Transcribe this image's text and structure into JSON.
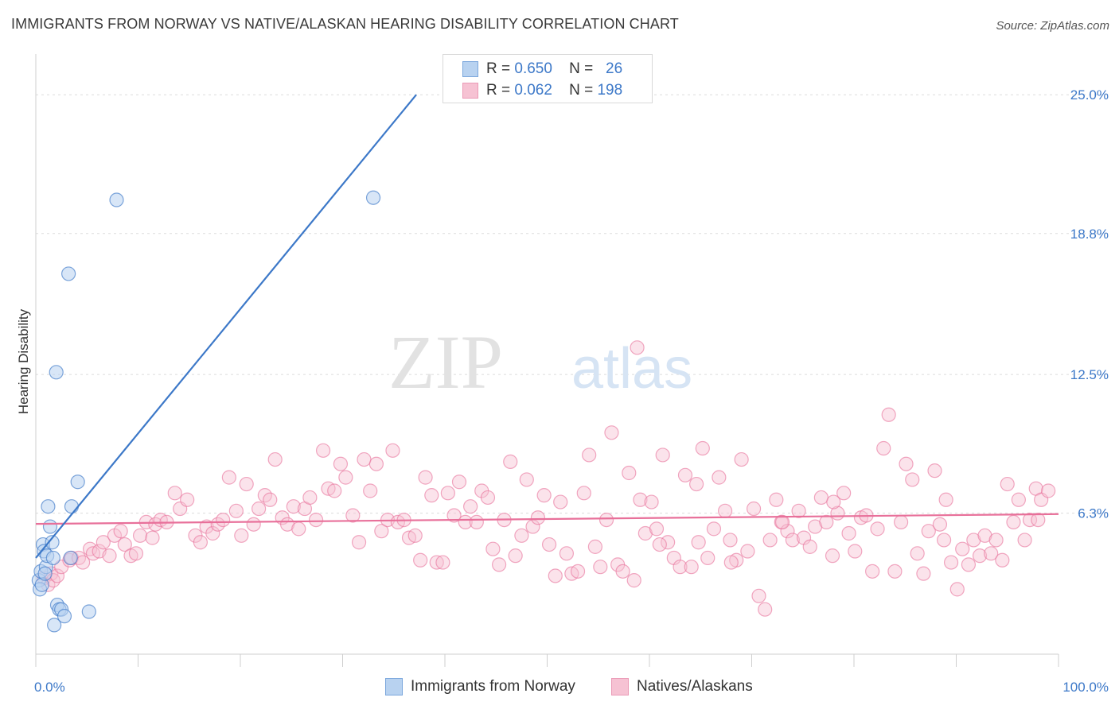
{
  "title": "IMMIGRANTS FROM NORWAY VS NATIVE/ALASKAN HEARING DISABILITY CORRELATION CHART",
  "source": "Source: ZipAtlas.com",
  "watermark": {
    "zip": "ZIP",
    "atlas": "atlas"
  },
  "colors": {
    "blue": "#3c78c8",
    "blue_fill": "#b8d2f0",
    "pink": "#e8709a",
    "pink_fill": "#f6c2d3",
    "grid": "#dcdcdc"
  },
  "legend": {
    "rows": [
      {
        "r_label": "R =",
        "r_value": "0.650",
        "n_label": "N =",
        "n_value": "26"
      },
      {
        "r_label": "R =",
        "r_value": "0.062",
        "n_label": "N =",
        "n_value": "198"
      }
    ]
  },
  "bottom_legend": {
    "series1": "Immigrants from Norway",
    "series2": "Natives/Alaskans"
  },
  "chart_data": {
    "type": "scatter",
    "title": "IMMIGRANTS FROM NORWAY VS NATIVE/ALASKAN HEARING DISABILITY CORRELATION CHART",
    "xlabel": "",
    "ylabel": "Hearing Disability",
    "xlim": [
      0,
      100
    ],
    "ylim": [
      0,
      26.5
    ],
    "x_tick_labels": [
      "0.0%",
      "100.0%"
    ],
    "y_ticks": [
      6.3,
      12.5,
      18.8,
      25.0
    ],
    "y_tick_labels": [
      "6.3%",
      "12.5%",
      "18.8%",
      "25.0%"
    ],
    "grid": true,
    "series": [
      {
        "name": "Immigrants from Norway",
        "R": 0.65,
        "N": 26,
        "trendline": {
          "x": [
            0,
            37.2
          ],
          "y": [
            4.3,
            25.0
          ]
        },
        "points": [
          [
            0.3,
            3.3
          ],
          [
            0.4,
            2.9
          ],
          [
            0.5,
            3.7
          ],
          [
            0.6,
            3.1
          ],
          [
            0.7,
            4.9
          ],
          [
            0.8,
            4.6
          ],
          [
            1.0,
            3.9
          ],
          [
            1.1,
            4.4
          ],
          [
            1.2,
            6.6
          ],
          [
            1.4,
            5.7
          ],
          [
            1.6,
            5.0
          ],
          [
            1.7,
            4.3
          ],
          [
            1.8,
            1.3
          ],
          [
            2.1,
            2.2
          ],
          [
            2.3,
            2.0
          ],
          [
            2.5,
            2.0
          ],
          [
            2.8,
            1.7
          ],
          [
            3.2,
            17.0
          ],
          [
            3.4,
            4.3
          ],
          [
            3.5,
            6.6
          ],
          [
            4.1,
            7.7
          ],
          [
            5.2,
            1.9
          ],
          [
            7.9,
            20.3
          ],
          [
            2.0,
            12.6
          ],
          [
            33.0,
            20.4
          ],
          [
            0.9,
            3.6
          ]
        ]
      },
      {
        "name": "Natives/Alaskans",
        "R": 0.062,
        "N": 198,
        "trendline": {
          "x": [
            0,
            100
          ],
          "y": [
            5.82,
            6.26
          ]
        },
        "points": [
          [
            0.8,
            3.4
          ],
          [
            1.2,
            3.1
          ],
          [
            1.5,
            3.6
          ],
          [
            1.7,
            3.3
          ],
          [
            2.1,
            3.5
          ],
          [
            2.5,
            3.9
          ],
          [
            3.3,
            4.2
          ],
          [
            3.5,
            4.3
          ],
          [
            4.2,
            4.3
          ],
          [
            4.6,
            4.1
          ],
          [
            5.3,
            4.7
          ],
          [
            5.6,
            4.5
          ],
          [
            6.2,
            4.6
          ],
          [
            6.6,
            5.0
          ],
          [
            7.2,
            4.4
          ],
          [
            7.7,
            5.3
          ],
          [
            8.3,
            5.5
          ],
          [
            8.7,
            4.9
          ],
          [
            9.3,
            4.4
          ],
          [
            9.8,
            4.5
          ],
          [
            10.2,
            5.3
          ],
          [
            10.8,
            5.9
          ],
          [
            11.4,
            5.2
          ],
          [
            11.7,
            5.8
          ],
          [
            12.2,
            6.0
          ],
          [
            12.8,
            5.9
          ],
          [
            13.6,
            7.2
          ],
          [
            14.1,
            6.5
          ],
          [
            14.8,
            6.9
          ],
          [
            15.6,
            5.3
          ],
          [
            16.1,
            5.0
          ],
          [
            16.7,
            5.7
          ],
          [
            17.3,
            5.4
          ],
          [
            17.8,
            5.8
          ],
          [
            18.3,
            6.0
          ],
          [
            18.9,
            7.9
          ],
          [
            19.6,
            6.4
          ],
          [
            20.1,
            5.3
          ],
          [
            20.6,
            7.6
          ],
          [
            21.3,
            5.8
          ],
          [
            21.8,
            6.5
          ],
          [
            22.4,
            7.1
          ],
          [
            22.9,
            6.9
          ],
          [
            23.4,
            8.7
          ],
          [
            24.1,
            6.1
          ],
          [
            24.6,
            5.8
          ],
          [
            25.2,
            6.6
          ],
          [
            25.7,
            5.6
          ],
          [
            26.3,
            6.5
          ],
          [
            26.8,
            7.0
          ],
          [
            27.4,
            6.0
          ],
          [
            28.1,
            9.1
          ],
          [
            28.6,
            7.4
          ],
          [
            29.2,
            7.3
          ],
          [
            29.8,
            8.5
          ],
          [
            30.3,
            7.9
          ],
          [
            31.0,
            6.2
          ],
          [
            31.6,
            5.0
          ],
          [
            32.1,
            8.7
          ],
          [
            32.7,
            7.3
          ],
          [
            33.3,
            8.5
          ],
          [
            33.8,
            5.5
          ],
          [
            34.4,
            6.0
          ],
          [
            34.9,
            9.1
          ],
          [
            35.4,
            5.9
          ],
          [
            36.0,
            6.0
          ],
          [
            36.5,
            5.2
          ],
          [
            37.1,
            5.3
          ],
          [
            37.6,
            4.2
          ],
          [
            38.1,
            7.9
          ],
          [
            38.7,
            7.1
          ],
          [
            39.2,
            4.1
          ],
          [
            39.8,
            4.1
          ],
          [
            40.3,
            7.2
          ],
          [
            40.9,
            6.2
          ],
          [
            41.4,
            7.7
          ],
          [
            42.0,
            5.9
          ],
          [
            42.5,
            6.6
          ],
          [
            43.1,
            5.9
          ],
          [
            43.6,
            7.3
          ],
          [
            44.2,
            7.0
          ],
          [
            44.7,
            4.7
          ],
          [
            45.3,
            4.0
          ],
          [
            45.8,
            6.0
          ],
          [
            46.4,
            8.6
          ],
          [
            46.9,
            4.4
          ],
          [
            47.5,
            5.3
          ],
          [
            48.0,
            7.8
          ],
          [
            48.6,
            5.7
          ],
          [
            49.1,
            6.1
          ],
          [
            49.7,
            7.1
          ],
          [
            50.2,
            4.9
          ],
          [
            50.8,
            3.5
          ],
          [
            51.3,
            6.8
          ],
          [
            51.9,
            4.5
          ],
          [
            52.4,
            3.6
          ],
          [
            53.0,
            3.7
          ],
          [
            53.6,
            7.2
          ],
          [
            54.1,
            8.9
          ],
          [
            54.7,
            4.8
          ],
          [
            55.2,
            3.9
          ],
          [
            55.8,
            6.0
          ],
          [
            56.3,
            9.9
          ],
          [
            56.9,
            4.0
          ],
          [
            57.4,
            3.7
          ],
          [
            58.0,
            8.1
          ],
          [
            58.5,
            3.3
          ],
          [
            59.1,
            6.9
          ],
          [
            59.6,
            5.4
          ],
          [
            60.2,
            6.8
          ],
          [
            60.7,
            5.6
          ],
          [
            61.3,
            8.9
          ],
          [
            61.8,
            5.0
          ],
          [
            62.4,
            4.3
          ],
          [
            63.0,
            3.9
          ],
          [
            63.5,
            8.0
          ],
          [
            64.1,
            3.9
          ],
          [
            64.6,
            7.6
          ],
          [
            65.2,
            9.2
          ],
          [
            65.7,
            4.3
          ],
          [
            66.3,
            5.6
          ],
          [
            66.8,
            7.9
          ],
          [
            67.4,
            6.4
          ],
          [
            67.9,
            5.1
          ],
          [
            68.5,
            4.2
          ],
          [
            69.0,
            8.7
          ],
          [
            69.6,
            4.6
          ],
          [
            70.2,
            6.5
          ],
          [
            70.7,
            2.6
          ],
          [
            71.3,
            2.0
          ],
          [
            71.8,
            5.1
          ],
          [
            72.4,
            6.9
          ],
          [
            72.9,
            5.9
          ],
          [
            73.5,
            5.5
          ],
          [
            74.0,
            5.1
          ],
          [
            74.6,
            6.4
          ],
          [
            75.1,
            5.2
          ],
          [
            75.7,
            4.8
          ],
          [
            76.2,
            5.7
          ],
          [
            76.8,
            7.0
          ],
          [
            77.3,
            5.9
          ],
          [
            77.9,
            4.4
          ],
          [
            78.4,
            6.3
          ],
          [
            79.0,
            7.2
          ],
          [
            79.5,
            5.4
          ],
          [
            80.1,
            4.6
          ],
          [
            80.7,
            6.1
          ],
          [
            81.2,
            6.2
          ],
          [
            81.8,
            3.7
          ],
          [
            82.3,
            5.6
          ],
          [
            82.9,
            9.2
          ],
          [
            83.4,
            10.7
          ],
          [
            84.0,
            3.7
          ],
          [
            84.6,
            5.9
          ],
          [
            85.1,
            8.5
          ],
          [
            85.7,
            7.8
          ],
          [
            86.2,
            4.5
          ],
          [
            86.8,
            3.6
          ],
          [
            87.3,
            5.5
          ],
          [
            87.9,
            8.2
          ],
          [
            88.4,
            5.8
          ],
          [
            89.0,
            6.9
          ],
          [
            89.5,
            4.1
          ],
          [
            90.1,
            2.9
          ],
          [
            90.6,
            4.7
          ],
          [
            91.2,
            4.0
          ],
          [
            91.7,
            5.1
          ],
          [
            92.3,
            4.4
          ],
          [
            92.8,
            5.3
          ],
          [
            93.4,
            4.5
          ],
          [
            93.9,
            5.1
          ],
          [
            94.5,
            4.2
          ],
          [
            95.0,
            7.6
          ],
          [
            95.6,
            5.9
          ],
          [
            96.1,
            6.9
          ],
          [
            96.7,
            5.1
          ],
          [
            97.2,
            6.0
          ],
          [
            97.8,
            7.4
          ],
          [
            98.3,
            6.9
          ],
          [
            99.0,
            7.3
          ],
          [
            61.0,
            4.9
          ],
          [
            64.8,
            5.0
          ],
          [
            68.0,
            4.1
          ],
          [
            73.0,
            5.9
          ],
          [
            78.0,
            6.8
          ],
          [
            88.8,
            5.1
          ],
          [
            98.0,
            6.0
          ],
          [
            58.8,
            13.7
          ]
        ]
      }
    ]
  }
}
